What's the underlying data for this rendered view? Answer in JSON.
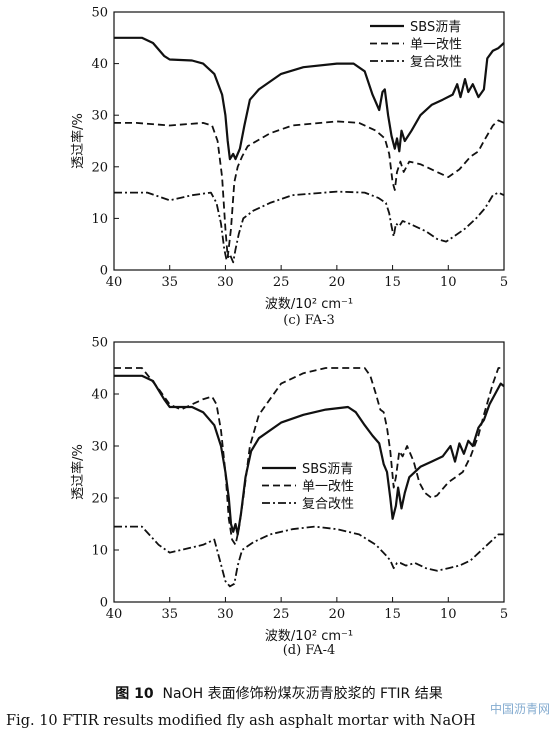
{
  "chart_data": [
    {
      "type": "line",
      "panel_label": "(c) FA-3",
      "xlabel": "波数/10² cm⁻¹",
      "ylabel": "透过率/%",
      "xlim": [
        40,
        5
      ],
      "ylim": [
        0,
        50
      ],
      "xticks": [
        40,
        35,
        30,
        25,
        20,
        15,
        10,
        5
      ],
      "yticks": [
        0,
        10,
        20,
        30,
        40,
        50
      ],
      "legend_position": "top-right",
      "series": [
        {
          "name": "SBS沥青",
          "style": "solid",
          "points": [
            [
              40,
              45
            ],
            [
              37.5,
              45
            ],
            [
              36.5,
              44
            ],
            [
              35.5,
              41.5
            ],
            [
              35,
              40.8
            ],
            [
              33,
              40.6
            ],
            [
              32,
              40
            ],
            [
              31,
              38
            ],
            [
              30.3,
              34
            ],
            [
              30,
              30
            ],
            [
              29.8,
              25
            ],
            [
              29.6,
              21.5
            ],
            [
              29.3,
              22.5
            ],
            [
              29.1,
              21.5
            ],
            [
              28.7,
              23.5
            ],
            [
              28.3,
              28
            ],
            [
              27.8,
              33
            ],
            [
              27,
              35
            ],
            [
              25,
              38
            ],
            [
              23,
              39.3
            ],
            [
              20,
              40
            ],
            [
              18.5,
              40
            ],
            [
              17.5,
              38.5
            ],
            [
              16.8,
              34
            ],
            [
              16.2,
              31
            ],
            [
              15.9,
              34.5
            ],
            [
              15.7,
              35
            ],
            [
              15.4,
              30
            ],
            [
              15.1,
              26
            ],
            [
              14.8,
              23.5
            ],
            [
              14.6,
              25.5
            ],
            [
              14.4,
              23
            ],
            [
              14.2,
              27
            ],
            [
              13.9,
              25
            ],
            [
              13.3,
              27
            ],
            [
              12.5,
              30
            ],
            [
              11.5,
              32
            ],
            [
              10.5,
              33
            ],
            [
              9.6,
              34
            ],
            [
              9.2,
              36
            ],
            [
              8.9,
              33.5
            ],
            [
              8.5,
              37
            ],
            [
              8.2,
              34.5
            ],
            [
              7.8,
              36
            ],
            [
              7.3,
              33.5
            ],
            [
              6.8,
              35
            ],
            [
              6.5,
              41
            ],
            [
              6,
              42.5
            ],
            [
              5.5,
              43
            ],
            [
              5,
              44
            ]
          ]
        },
        {
          "name": "单一改性",
          "style": "dashed",
          "points": [
            [
              40,
              28.5
            ],
            [
              38,
              28.5
            ],
            [
              35,
              28
            ],
            [
              32,
              28.5
            ],
            [
              31.2,
              28
            ],
            [
              30.7,
              25
            ],
            [
              30.3,
              18
            ],
            [
              30,
              8
            ],
            [
              29.8,
              2.5
            ],
            [
              29.5,
              8
            ],
            [
              29.2,
              17
            ],
            [
              28.9,
              20
            ],
            [
              28.5,
              22
            ],
            [
              28,
              24
            ],
            [
              26,
              26.5
            ],
            [
              24,
              28
            ],
            [
              20,
              28.8
            ],
            [
              18,
              28.5
            ],
            [
              16.5,
              27
            ],
            [
              15.7,
              25.5
            ],
            [
              15.3,
              22.5
            ],
            [
              15,
              17
            ],
            [
              14.8,
              15.5
            ],
            [
              14.6,
              19
            ],
            [
              14.3,
              21
            ],
            [
              14,
              19
            ],
            [
              13.5,
              21
            ],
            [
              12.5,
              20.5
            ],
            [
              11,
              19
            ],
            [
              10,
              18
            ],
            [
              9,
              19.5
            ],
            [
              8,
              22
            ],
            [
              7.3,
              23
            ],
            [
              6.8,
              25
            ],
            [
              6,
              28
            ],
            [
              5.5,
              29
            ],
            [
              5,
              28.5
            ]
          ]
        },
        {
          "name": "复合改性",
          "style": "dashdot",
          "points": [
            [
              40,
              15
            ],
            [
              37,
              15
            ],
            [
              35,
              13.5
            ],
            [
              33,
              14.5
            ],
            [
              31.3,
              15
            ],
            [
              30.8,
              13
            ],
            [
              30.4,
              9
            ],
            [
              30.1,
              4
            ],
            [
              29.9,
              2
            ],
            [
              29.6,
              3
            ],
            [
              29.3,
              1.5
            ],
            [
              29.1,
              4
            ],
            [
              28.8,
              7
            ],
            [
              28.4,
              10
            ],
            [
              27.5,
              11.5
            ],
            [
              26,
              13
            ],
            [
              24,
              14.5
            ],
            [
              20,
              15.2
            ],
            [
              17.5,
              15
            ],
            [
              16.3,
              14
            ],
            [
              15.6,
              13
            ],
            [
              15.3,
              11
            ],
            [
              15.1,
              8.5
            ],
            [
              14.9,
              6.5
            ],
            [
              14.7,
              9
            ],
            [
              14.4,
              8.5
            ],
            [
              14.1,
              9.5
            ],
            [
              13.5,
              9
            ],
            [
              12,
              7.5
            ],
            [
              11,
              6
            ],
            [
              10.2,
              5.5
            ],
            [
              9.5,
              6.5
            ],
            [
              8.5,
              8
            ],
            [
              7.5,
              10
            ],
            [
              6.7,
              12
            ],
            [
              6,
              14.5
            ],
            [
              5.5,
              15
            ],
            [
              5,
              14.5
            ]
          ]
        }
      ]
    },
    {
      "type": "line",
      "panel_label": "(d) FA-4",
      "xlabel": "波数/10² cm⁻¹",
      "ylabel": "透过率/%",
      "xlim": [
        40,
        5
      ],
      "ylim": [
        0,
        50
      ],
      "xticks": [
        40,
        35,
        30,
        25,
        20,
        15,
        10,
        5
      ],
      "yticks": [
        0,
        10,
        20,
        30,
        40,
        50
      ],
      "legend_position": "center-right",
      "series": [
        {
          "name": "SBS沥青",
          "style": "solid",
          "points": [
            [
              40,
              43.5
            ],
            [
              37.5,
              43.5
            ],
            [
              36.5,
              42.5
            ],
            [
              35.5,
              39
            ],
            [
              35,
              37.5
            ],
            [
              33,
              37.5
            ],
            [
              32,
              36.5
            ],
            [
              31,
              34
            ],
            [
              30.4,
              30
            ],
            [
              30,
              25
            ],
            [
              29.7,
              20
            ],
            [
              29.5,
              15
            ],
            [
              29.3,
              13.5
            ],
            [
              29.1,
              15
            ],
            [
              28.9,
              13
            ],
            [
              28.6,
              17
            ],
            [
              28.2,
              24
            ],
            [
              27.7,
              29
            ],
            [
              27,
              31.5
            ],
            [
              25,
              34.5
            ],
            [
              23,
              36
            ],
            [
              21,
              37
            ],
            [
              19,
              37.5
            ],
            [
              18.3,
              36.5
            ],
            [
              17.5,
              34
            ],
            [
              16.8,
              32
            ],
            [
              16.2,
              30.5
            ],
            [
              15.8,
              26.5
            ],
            [
              15.5,
              25
            ],
            [
              15.2,
              20
            ],
            [
              15,
              16
            ],
            [
              14.7,
              18.5
            ],
            [
              14.5,
              22
            ],
            [
              14.2,
              18
            ],
            [
              13.9,
              21
            ],
            [
              13.5,
              24
            ],
            [
              12.5,
              26
            ],
            [
              11.5,
              27
            ],
            [
              10.5,
              28
            ],
            [
              9.8,
              30
            ],
            [
              9.4,
              27
            ],
            [
              9,
              30.5
            ],
            [
              8.6,
              28.5
            ],
            [
              8.2,
              31
            ],
            [
              7.8,
              30
            ],
            [
              7.3,
              33.5
            ],
            [
              6.8,
              35
            ],
            [
              6.3,
              38
            ],
            [
              5.8,
              40
            ],
            [
              5.3,
              42
            ],
            [
              5,
              41.5
            ]
          ]
        },
        {
          "name": "单一改性",
          "style": "dashed",
          "points": [
            [
              40,
              45
            ],
            [
              37.5,
              45
            ],
            [
              36,
              41
            ],
            [
              35,
              38
            ],
            [
              34,
              37
            ],
            [
              33,
              38
            ],
            [
              32,
              39
            ],
            [
              31.2,
              39.5
            ],
            [
              30.8,
              38
            ],
            [
              30.4,
              33
            ],
            [
              30,
              25
            ],
            [
              29.7,
              16
            ],
            [
              29.4,
              12
            ],
            [
              29.1,
              11
            ],
            [
              28.8,
              14
            ],
            [
              28.4,
              20
            ],
            [
              27.8,
              30
            ],
            [
              27,
              36
            ],
            [
              26,
              39
            ],
            [
              25,
              42
            ],
            [
              23,
              44
            ],
            [
              21,
              45
            ],
            [
              17.5,
              45
            ],
            [
              17,
              43.5
            ],
            [
              16.5,
              40
            ],
            [
              16.1,
              37
            ],
            [
              15.8,
              36.5
            ],
            [
              15.5,
              33.5
            ],
            [
              15.2,
              29
            ],
            [
              14.9,
              22
            ],
            [
              14.7,
              24
            ],
            [
              14.4,
              29
            ],
            [
              14.1,
              28
            ],
            [
              13.7,
              30
            ],
            [
              13.1,
              27
            ],
            [
              12.6,
              23
            ],
            [
              12.1,
              21
            ],
            [
              11.5,
              20
            ],
            [
              11,
              20.5
            ],
            [
              10,
              23
            ],
            [
              8.7,
              25
            ],
            [
              8,
              28
            ],
            [
              7.3,
              32
            ],
            [
              6.8,
              36
            ],
            [
              6,
              42
            ],
            [
              5.5,
              45
            ],
            [
              5,
              45
            ]
          ]
        },
        {
          "name": "复合改性",
          "style": "dashdot",
          "points": [
            [
              40,
              14.5
            ],
            [
              37.5,
              14.5
            ],
            [
              36,
              11
            ],
            [
              35,
              9.5
            ],
            [
              34,
              10
            ],
            [
              32,
              11
            ],
            [
              31,
              12
            ],
            [
              30.5,
              8
            ],
            [
              30,
              4
            ],
            [
              29.6,
              3
            ],
            [
              29.2,
              3.5
            ],
            [
              28.9,
              7
            ],
            [
              28.5,
              10
            ],
            [
              27.5,
              11.5
            ],
            [
              26,
              13
            ],
            [
              24,
              14
            ],
            [
              22,
              14.5
            ],
            [
              20,
              14
            ],
            [
              18,
              13
            ],
            [
              16.5,
              11
            ],
            [
              15.6,
              9
            ],
            [
              15.2,
              8
            ],
            [
              14.9,
              6.5
            ],
            [
              14.6,
              7.5
            ],
            [
              14.3,
              7.5
            ],
            [
              13.8,
              7
            ],
            [
              13,
              7.5
            ],
            [
              12,
              6.5
            ],
            [
              11,
              6
            ],
            [
              10,
              6.5
            ],
            [
              9,
              7
            ],
            [
              8,
              8
            ],
            [
              7,
              10
            ],
            [
              6,
              12
            ],
            [
              5.5,
              13
            ],
            [
              5,
              13
            ]
          ]
        }
      ]
    }
  ],
  "captions": {
    "zh_prefix": "图 10",
    "zh_text": "NaOH 表面修饰粉煤灰沥青胶浆的 FTIR 结果",
    "en": "Fig. 10   FTIR results modified fly ash asphalt mortar with NaOH"
  },
  "watermark": "中国沥青网"
}
